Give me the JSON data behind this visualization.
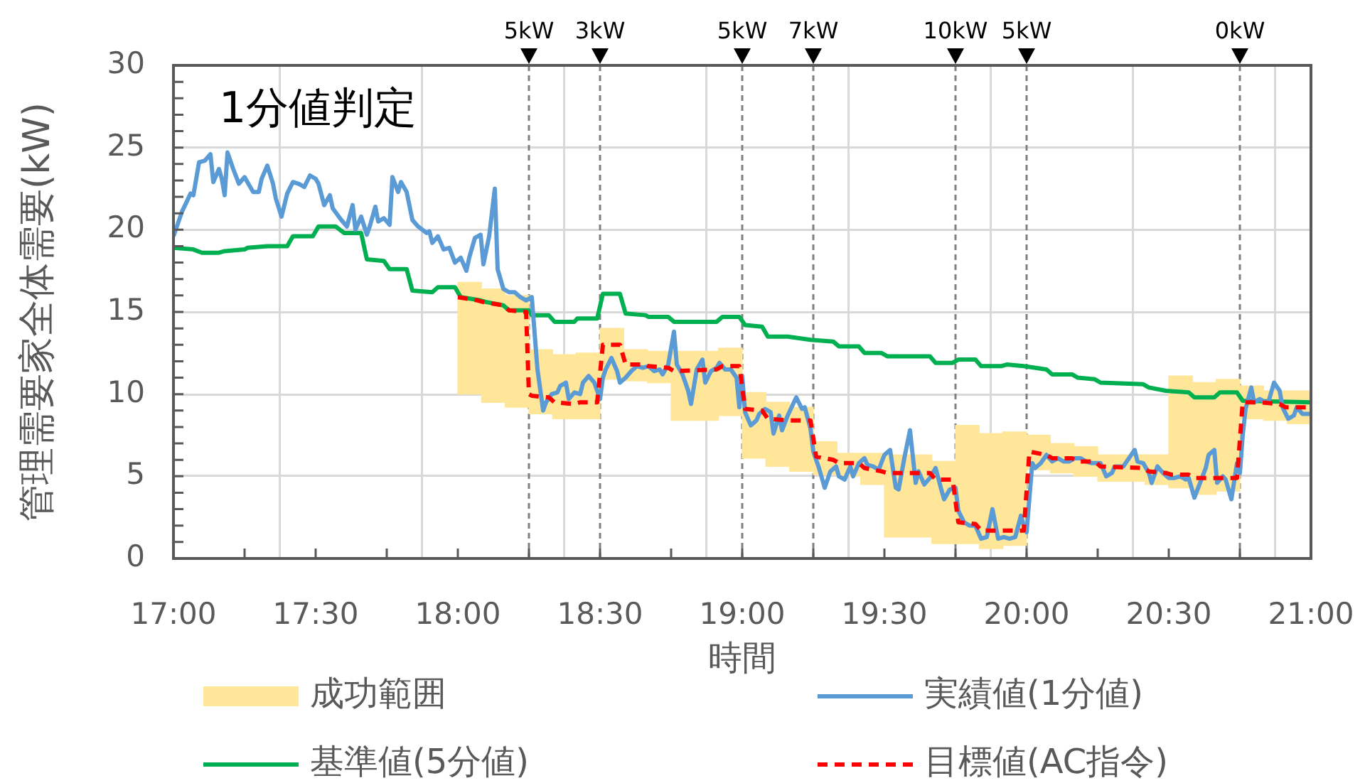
{
  "chart_data": {
    "type": "line",
    "xlabel": "時間",
    "ylabel": "管理需要家全体需要(kW)",
    "annotations": [
      "1分値判定"
    ],
    "xlim": [
      17,
      21
    ],
    "xticks": [
      {
        "value": 17,
        "label": "17:00"
      },
      {
        "value": 17.25,
        "label": null
      },
      {
        "value": 17.5,
        "label": "17:30"
      },
      {
        "value": 17.75,
        "label": null
      },
      {
        "value": 18,
        "label": "18:00"
      },
      {
        "value": 18.25,
        "label": null
      },
      {
        "value": 18.5,
        "label": "18:30"
      },
      {
        "value": 18.75,
        "label": null
      },
      {
        "value": 19,
        "label": "19:00"
      },
      {
        "value": 19.25,
        "label": null
      },
      {
        "value": 19.5,
        "label": "19:30"
      },
      {
        "value": 19.75,
        "label": null
      },
      {
        "value": 20,
        "label": "20:00"
      },
      {
        "value": 20.25,
        "label": null
      },
      {
        "value": 20.5,
        "label": "20:30"
      },
      {
        "value": 20.75,
        "label": null
      },
      {
        "value": 21,
        "label": "21:00"
      }
    ],
    "ylim": [
      0,
      30
    ],
    "yticks": [
      0,
      {
        "value": 1,
        "label": null
      },
      {
        "value": 2,
        "label": null
      },
      {
        "value": 3,
        "label": null
      },
      {
        "value": 4,
        "label": null
      },
      5,
      {
        "value": 6,
        "label": null
      },
      {
        "value": 7,
        "label": null
      },
      {
        "value": 8,
        "label": null
      },
      {
        "value": 9,
        "label": null
      },
      10,
      {
        "value": 11,
        "label": null
      },
      {
        "value": 12,
        "label": null
      },
      {
        "value": 13,
        "label": null
      },
      {
        "value": 14,
        "label": null
      },
      15,
      {
        "value": 16,
        "label": null
      },
      {
        "value": 17,
        "label": null
      },
      {
        "value": 18,
        "label": null
      },
      {
        "value": 19,
        "label": null
      },
      20,
      {
        "value": 21,
        "label": null
      },
      {
        "value": 22,
        "label": null
      },
      {
        "value": 23,
        "label": null
      },
      {
        "value": 24,
        "label": null
      },
      25,
      {
        "value": 26,
        "label": null
      },
      {
        "value": 27,
        "label": null
      },
      {
        "value": 28,
        "label": null
      },
      {
        "value": 29,
        "label": null
      },
      30
    ],
    "grid": true,
    "legend": "bottom",
    "marker": "none",
    "ref_lines": [
      {
        "axis": "x",
        "value": 18.25,
        "label": "5kW",
        "color": "#808080",
        "line_style": "dashed"
      },
      {
        "axis": "x",
        "value": 18.5,
        "label": "3kW",
        "color": "#808080",
        "line_style": "dashed"
      },
      {
        "axis": "x",
        "value": 19,
        "label": "5kW",
        "color": "#808080",
        "line_style": "dashed"
      },
      {
        "axis": "x",
        "value": 19.25,
        "label": "7kW",
        "color": "#808080",
        "line_style": "dashed"
      },
      {
        "axis": "x",
        "value": 19.75,
        "label": "10kW",
        "color": "#808080",
        "line_style": "dashed"
      },
      {
        "axis": "x",
        "value": 20,
        "label": "5kW",
        "color": "#808080",
        "line_style": "dashed"
      },
      {
        "axis": "x",
        "value": 20.75,
        "label": "0kW",
        "color": "#808080",
        "line_style": "dashed"
      }
    ],
    "series": [
      {
        "name": "成功範囲",
        "type": "bar",
        "color": "#ffe699",
        "x": [
          18.0417,
          18.125,
          18.2083,
          18.2917,
          18.375,
          18.4583,
          18.5417,
          18.625,
          18.7083,
          18.7917,
          18.875,
          18.9583,
          19.0417,
          19.125,
          19.2083,
          19.2917,
          19.375,
          19.4583,
          19.5417,
          19.625,
          19.7083,
          19.7917,
          19.875,
          19.9583,
          20.0417,
          20.125,
          20.2083,
          20.2917,
          20.375,
          20.4583,
          20.5417,
          20.625,
          20.7083,
          20.7917,
          20.875,
          20.9583
        ],
        "base": [
          10.0,
          9.5,
          9.2,
          8.8,
          8.5,
          8.5,
          10.9,
          10.8,
          10.7,
          8.4,
          8.4,
          8.7,
          6.1,
          5.6,
          5.3,
          5.1,
          5.0,
          4.5,
          1.3,
          1.3,
          0.9,
          0.9,
          0.6,
          0.8,
          5.4,
          5.2,
          5.0,
          4.7,
          4.7,
          4.5,
          4.3,
          3.9,
          4.1,
          8.5,
          8.4,
          8.2
        ],
        "values": [
          6.8,
          6.9,
          6.8,
          3.9,
          3.9,
          4.0,
          3.1,
          1.9,
          1.9,
          4.2,
          4.2,
          4.1,
          4.0,
          3.9,
          3.9,
          2.0,
          1.4,
          1.9,
          5.0,
          5.0,
          5.0,
          7.2,
          7.0,
          6.9,
          2.1,
          1.8,
          1.8,
          1.6,
          1.6,
          1.8,
          6.8,
          6.8,
          6.8,
          2.0,
          1.8,
          2.0
        ]
      },
      {
        "name": "実績値(1分値)",
        "color": "#5b9bd5",
        "x": [
          17.0,
          17.03,
          17.06,
          17.07,
          17.09,
          17.11,
          17.13,
          17.14,
          17.16,
          17.17,
          17.18,
          17.19,
          17.21,
          17.23,
          17.25,
          17.28,
          17.3,
          17.31,
          17.33,
          17.35,
          17.36,
          17.38,
          17.4,
          17.42,
          17.44,
          17.46,
          17.48,
          17.5,
          17.51,
          17.53,
          17.55,
          17.56,
          17.59,
          17.61,
          17.63,
          17.64,
          17.66,
          17.68,
          17.69,
          17.71,
          17.72,
          17.74,
          17.76,
          17.77,
          17.79,
          17.8,
          17.82,
          17.84,
          17.86,
          17.89,
          17.9,
          17.91,
          17.93,
          17.95,
          17.97,
          17.99,
          18.01,
          18.03,
          18.04,
          18.06,
          18.08,
          18.09,
          18.11,
          18.13,
          18.14,
          18.16,
          18.18,
          18.2,
          18.22,
          18.24,
          18.26,
          18.28,
          18.3,
          18.31,
          18.33,
          18.35,
          18.36,
          18.38,
          18.39,
          18.41,
          18.43,
          18.44,
          18.46,
          18.48,
          18.5,
          18.51,
          18.52,
          18.54,
          18.56,
          18.57,
          18.59,
          18.61,
          18.63,
          18.65,
          18.67,
          18.69,
          18.71,
          18.72,
          18.74,
          18.76,
          18.77,
          18.79,
          18.81,
          18.82,
          18.84,
          18.86,
          18.87,
          18.89,
          18.91,
          18.92,
          18.94,
          18.96,
          18.98,
          18.99,
          19.0,
          19.01,
          19.03,
          19.05,
          19.06,
          19.08,
          19.1,
          19.11,
          19.13,
          19.14,
          19.16,
          19.19,
          19.21,
          19.22,
          19.24,
          19.25,
          19.27,
          19.29,
          19.31,
          19.33,
          19.34,
          19.36,
          19.38,
          19.39,
          19.41,
          19.43,
          19.44,
          19.46,
          19.48,
          19.5,
          19.52,
          19.54,
          19.55,
          19.57,
          19.59,
          19.61,
          19.62,
          19.64,
          19.66,
          19.68,
          19.7,
          19.71,
          19.73,
          19.75,
          19.76,
          19.78,
          19.8,
          19.82,
          19.84,
          19.86,
          19.88,
          19.9,
          19.92,
          19.94,
          19.96,
          19.98,
          19.99,
          20.0,
          20.02,
          20.03,
          20.05,
          20.07,
          20.09,
          20.11,
          20.13,
          20.15,
          20.17,
          20.19,
          20.21,
          20.23,
          20.26,
          20.28,
          20.3,
          20.31,
          20.34,
          20.36,
          20.38,
          20.39,
          20.41,
          20.43,
          20.44,
          20.46,
          20.48,
          20.5,
          20.52,
          20.54,
          20.56,
          20.57,
          20.59,
          20.61,
          20.63,
          20.64,
          20.66,
          20.67,
          20.69,
          20.7,
          20.72,
          20.74,
          20.75,
          20.76,
          20.77,
          20.79,
          20.8,
          20.82,
          20.84,
          20.85,
          20.87,
          20.89,
          20.9,
          20.92,
          20.94,
          20.95,
          20.97,
          21.0
        ],
        "values": [
          19.6,
          21.1,
          22.2,
          22.1,
          24.1,
          24.2,
          24.6,
          22.9,
          23.7,
          23.1,
          22.1,
          24.7,
          23.7,
          22.8,
          23.2,
          22.3,
          22.3,
          23.1,
          23.9,
          22.8,
          21.9,
          20.8,
          22.2,
          22.9,
          22.8,
          22.6,
          23.3,
          23.1,
          22.8,
          21.5,
          22.1,
          21.3,
          20.6,
          20.2,
          21.5,
          20.0,
          20.8,
          19.7,
          20.2,
          21.4,
          20.5,
          20.7,
          20.3,
          23.2,
          22.3,
          22.9,
          22.3,
          20.6,
          20.2,
          19.8,
          19.9,
          19.2,
          19.6,
          18.8,
          18.9,
          18.0,
          18.3,
          17.5,
          18.3,
          19.5,
          19.7,
          17.9,
          19.6,
          22.5,
          17.6,
          16.4,
          16.2,
          16.2,
          15.9,
          15.7,
          15.9,
          11.5,
          9.0,
          9.5,
          10.0,
          10.1,
          10.5,
          10.7,
          9.7,
          10.1,
          10.0,
          10.7,
          11.1,
          10.7,
          9.7,
          11.0,
          11.5,
          12.2,
          11.4,
          10.7,
          11.0,
          11.4,
          11.7,
          11.6,
          11.7,
          11.4,
          11.5,
          11.2,
          11.8,
          13.8,
          11.8,
          11.2,
          10.2,
          9.4,
          11.5,
          12.1,
          10.7,
          11.4,
          11.6,
          11.9,
          11.5,
          11.5,
          11.0,
          9.2,
          11.1,
          8.9,
          8.1,
          8.4,
          8.8,
          9.1,
          8.9,
          7.6,
          8.7,
          7.8,
          8.7,
          9.8,
          9.1,
          9.2,
          7.9,
          6.5,
          5.5,
          4.3,
          5.3,
          5.6,
          5.0,
          4.8,
          5.6,
          5.0,
          5.8,
          6.1,
          5.7,
          5.6,
          5.4,
          6.3,
          6.6,
          4.3,
          4.2,
          6.1,
          7.8,
          4.6,
          5.3,
          4.5,
          4.9,
          5.5,
          4.2,
          3.6,
          4.2,
          4.3,
          2.9,
          2.2,
          2.0,
          2.0,
          1.2,
          1.3,
          3.0,
          1.2,
          1.3,
          1.2,
          1.3,
          2.6,
          2.0,
          1.6,
          5.8,
          5.5,
          5.8,
          6.3,
          5.9,
          6.1,
          5.9,
          5.9,
          6.1,
          6.1,
          5.9,
          5.8,
          5.8,
          5.0,
          5.2,
          5.6,
          5.6,
          6.1,
          6.6,
          5.9,
          5.8,
          5.2,
          4.6,
          5.6,
          5.2,
          4.9,
          4.9,
          5.0,
          4.8,
          4.9,
          3.7,
          4.6,
          5.5,
          6.3,
          6.6,
          4.6,
          5.0,
          4.8,
          3.6,
          5.8,
          5.2,
          7.5,
          9.1,
          10.4,
          9.5,
          9.7,
          9.5,
          9.5,
          10.7,
          10.2,
          9.2,
          8.5,
          8.7,
          9.2,
          8.8,
          8.8
        ]
      },
      {
        "name": "基準値(5分値)",
        "color": "#00b050",
        "x": [
          17.0,
          17.07,
          17.1,
          17.16,
          17.18,
          17.25,
          17.26,
          17.33,
          17.4,
          17.42,
          17.49,
          17.51,
          17.57,
          17.6,
          17.66,
          17.68,
          17.74,
          17.76,
          17.82,
          17.84,
          17.91,
          17.93,
          17.99,
          18.01,
          18.08,
          18.1,
          18.16,
          18.18,
          18.25,
          18.26,
          18.32,
          18.34,
          18.41,
          18.42,
          18.49,
          18.51,
          18.57,
          18.59,
          18.66,
          18.67,
          18.74,
          18.76,
          18.91,
          18.93,
          18.99,
          19.01,
          19.07,
          19.09,
          19.16,
          19.24,
          19.32,
          19.34,
          19.41,
          19.43,
          19.49,
          19.51,
          19.66,
          19.68,
          19.74,
          19.76,
          19.82,
          19.84,
          19.91,
          19.93,
          19.99,
          20.07,
          20.09,
          20.16,
          20.18,
          20.24,
          20.26,
          20.41,
          20.43,
          20.49,
          20.57,
          20.59,
          20.66,
          20.68,
          20.74,
          20.76,
          21.0
        ],
        "values": [
          18.9,
          18.8,
          18.6,
          18.6,
          18.7,
          18.8,
          18.9,
          19.0,
          19.0,
          19.6,
          19.6,
          20.2,
          20.2,
          19.8,
          19.8,
          18.2,
          18.1,
          17.6,
          17.6,
          16.3,
          16.2,
          16.5,
          16.5,
          15.9,
          15.7,
          15.6,
          15.4,
          15.1,
          15.1,
          14.8,
          14.8,
          14.4,
          14.4,
          14.6,
          14.6,
          16.1,
          16.1,
          14.9,
          14.8,
          14.7,
          14.7,
          14.4,
          14.4,
          14.7,
          14.7,
          14.2,
          14.1,
          13.5,
          13.5,
          13.3,
          13.2,
          12.9,
          12.9,
          12.5,
          12.5,
          12.3,
          12.3,
          11.9,
          11.9,
          12.1,
          12.1,
          11.7,
          11.7,
          11.8,
          11.7,
          11.5,
          11.2,
          11.2,
          11.0,
          10.9,
          10.7,
          10.6,
          10.4,
          10.2,
          10.1,
          9.8,
          9.8,
          10.1,
          10.1,
          9.6,
          9.5
        ]
      },
      {
        "name": "目標値(AC指令)",
        "color": "#ff0000",
        "line_style": "dashed",
        "x": [
          18.0,
          18.07,
          18.09,
          18.16,
          18.18,
          18.24,
          18.25,
          18.26,
          18.32,
          18.34,
          18.41,
          18.43,
          18.49,
          18.51,
          18.57,
          18.59,
          18.66,
          18.67,
          18.74,
          18.76,
          18.91,
          18.93,
          18.99,
          19.01,
          19.07,
          19.09,
          19.16,
          19.24,
          19.26,
          19.32,
          19.34,
          19.41,
          19.43,
          19.49,
          19.51,
          19.66,
          19.68,
          19.74,
          19.76,
          19.82,
          19.84,
          19.99,
          20.01,
          20.07,
          20.09,
          20.16,
          20.18,
          20.24,
          20.26,
          20.41,
          20.43,
          20.49,
          20.51,
          20.57,
          20.59,
          20.74,
          20.76,
          20.82,
          20.89,
          20.91,
          21.0
        ],
        "values": [
          15.9,
          15.7,
          15.6,
          15.4,
          15.1,
          15.0,
          10.0,
          9.9,
          9.8,
          9.5,
          9.4,
          9.5,
          9.5,
          13.0,
          13.0,
          11.8,
          11.8,
          11.7,
          11.6,
          11.4,
          11.5,
          11.7,
          11.7,
          9.1,
          9.0,
          8.5,
          8.4,
          8.4,
          6.2,
          6.0,
          5.8,
          5.8,
          5.5,
          5.3,
          5.2,
          5.2,
          4.8,
          4.8,
          2.2,
          2.1,
          1.7,
          1.7,
          6.5,
          6.3,
          6.1,
          6.1,
          5.9,
          5.9,
          5.6,
          5.5,
          5.3,
          5.2,
          5.1,
          5.1,
          4.9,
          4.9,
          9.5,
          9.5,
          9.4,
          9.2,
          9.2
        ]
      }
    ]
  }
}
